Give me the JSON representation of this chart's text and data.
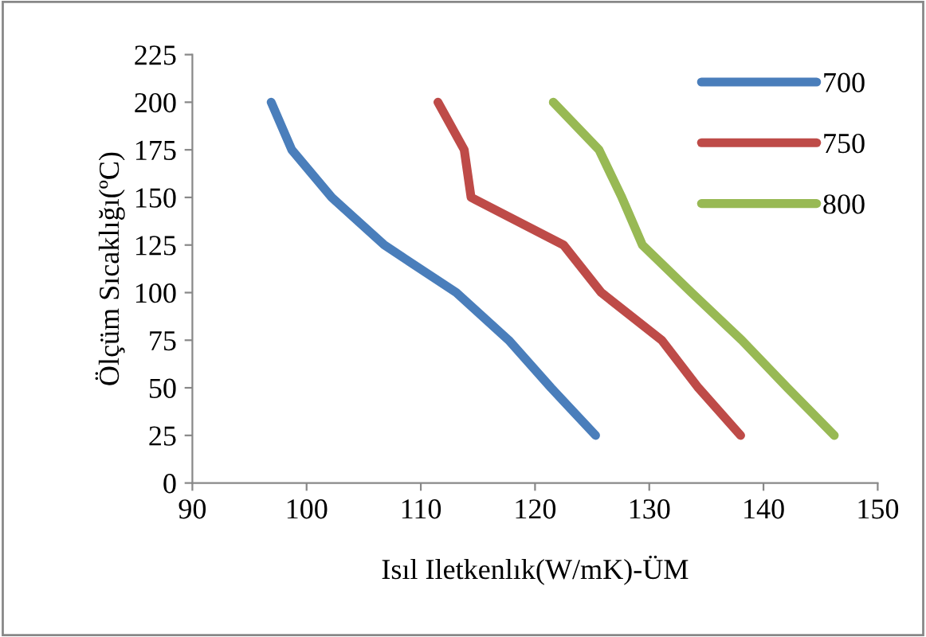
{
  "chart_data": {
    "type": "line",
    "xlabel": "Isıl Iletkenlık(W/mK)-ÜM",
    "ylabel": "Ölçüm Sıcaklığı(ºC)",
    "xlim": [
      90,
      150
    ],
    "xticks": [
      90,
      100,
      110,
      120,
      130,
      140,
      150
    ],
    "ylim": [
      0,
      225
    ],
    "yticks": [
      0,
      25,
      50,
      75,
      100,
      125,
      150,
      175,
      200,
      225
    ],
    "grid": false,
    "legend": "top right",
    "marker": "none",
    "line_style": "solid",
    "series": [
      {
        "name": "700",
        "color": "#4a7ebb",
        "x": [
          96.9,
          98.7,
          102.2,
          106.8,
          113.1,
          117.7,
          121.4,
          125.3
        ],
        "values": [
          200,
          175,
          150,
          125,
          100,
          75,
          50,
          25
        ]
      },
      {
        "name": "750",
        "color": "#be4b48",
        "x": [
          111.5,
          113.8,
          114.4,
          122.5,
          125.8,
          131.1,
          134.3,
          138.0
        ],
        "values": [
          200,
          175,
          150,
          125,
          100,
          75,
          50,
          25
        ]
      },
      {
        "name": "800",
        "color": "#98b954",
        "x": [
          121.6,
          125.6,
          127.6,
          129.4,
          133.7,
          138.1,
          142.1,
          146.2
        ],
        "values": [
          200,
          175,
          150,
          125,
          100,
          75,
          50,
          25
        ]
      }
    ]
  }
}
